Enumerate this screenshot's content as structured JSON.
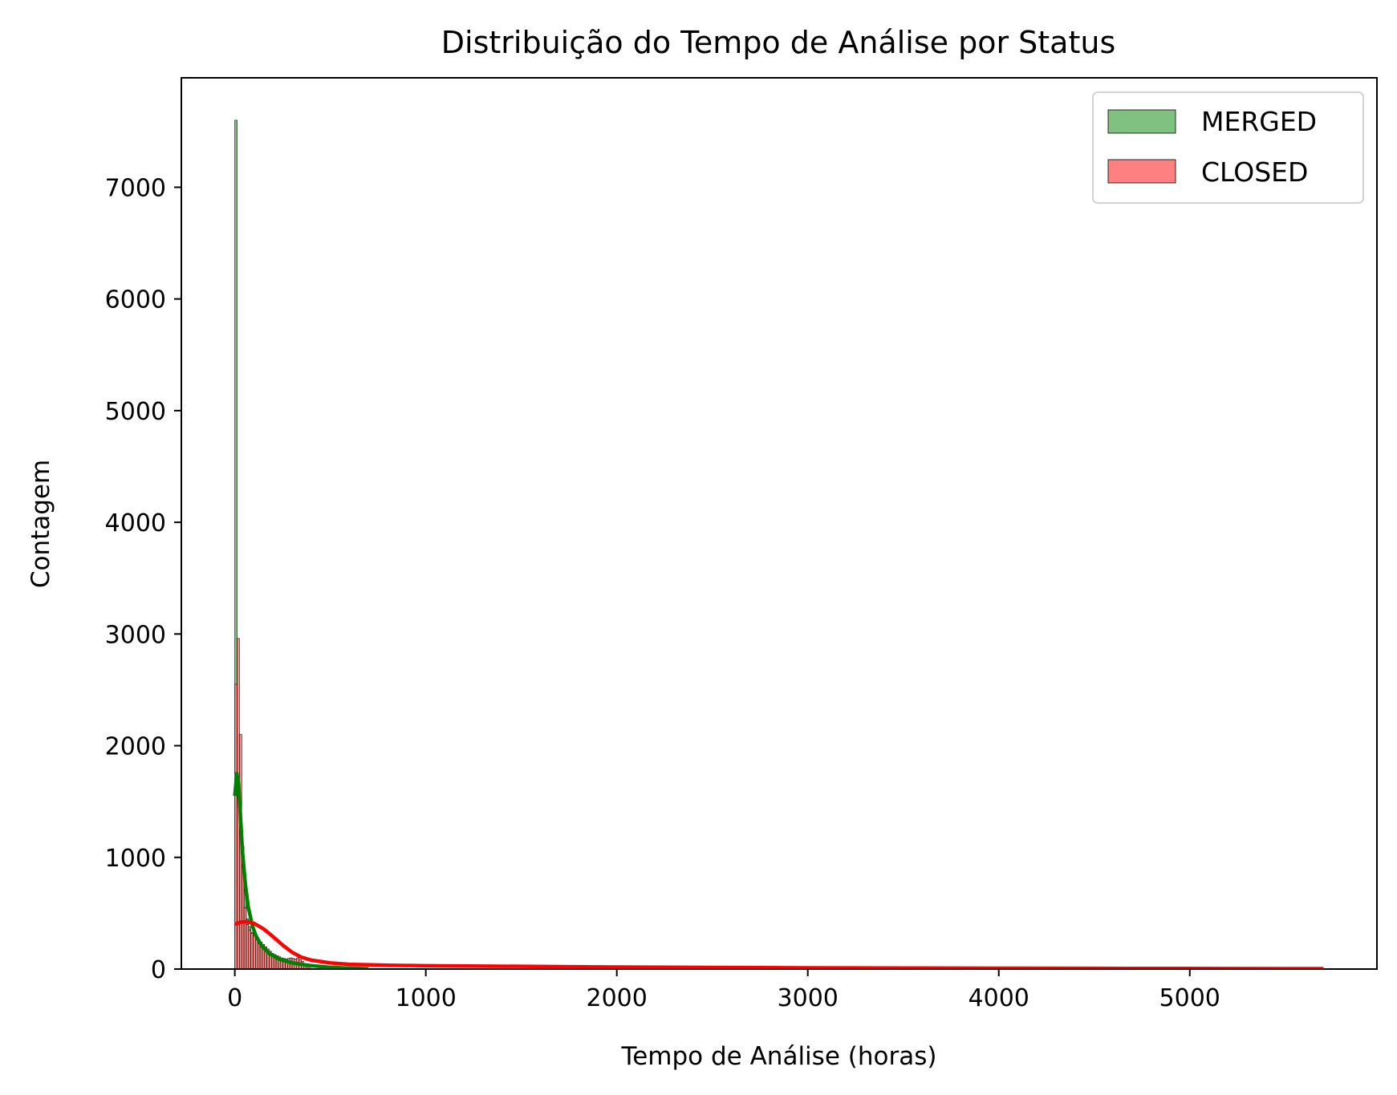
{
  "chart_data": {
    "type": "histogram",
    "title": "Distribuição do Tempo de Análise por Status",
    "xlabel": "Tempo de Análise (horas)",
    "ylabel": "Contagem",
    "xlim": [
      -280,
      5980
    ],
    "ylim": [
      0,
      7980
    ],
    "xticks": [
      0,
      1000,
      2000,
      3000,
      4000,
      5000
    ],
    "yticks": [
      0,
      1000,
      2000,
      3000,
      4000,
      5000,
      6000,
      7000
    ],
    "grid": false,
    "legend_position": "upper right",
    "series": [
      {
        "name": "MERGED",
        "color": "#008000",
        "bar_color": "#80c080",
        "bins": [
          {
            "x0": 0,
            "x1": 12,
            "count": 7600
          },
          {
            "x0": 12,
            "x1": 24,
            "count": 2100
          },
          {
            "x0": 24,
            "x1": 36,
            "count": 1500
          },
          {
            "x0": 36,
            "x1": 48,
            "count": 900
          },
          {
            "x0": 48,
            "x1": 60,
            "count": 700
          },
          {
            "x0": 60,
            "x1": 72,
            "count": 450
          },
          {
            "x0": 72,
            "x1": 84,
            "count": 380
          },
          {
            "x0": 84,
            "x1": 96,
            "count": 330
          },
          {
            "x0": 96,
            "x1": 108,
            "count": 290
          },
          {
            "x0": 108,
            "x1": 120,
            "count": 260
          },
          {
            "x0": 120,
            "x1": 132,
            "count": 230
          },
          {
            "x0": 132,
            "x1": 144,
            "count": 200
          },
          {
            "x0": 144,
            "x1": 156,
            "count": 180
          },
          {
            "x0": 156,
            "x1": 168,
            "count": 160
          },
          {
            "x0": 168,
            "x1": 180,
            "count": 140
          },
          {
            "x0": 180,
            "x1": 192,
            "count": 120
          },
          {
            "x0": 192,
            "x1": 204,
            "count": 110
          },
          {
            "x0": 204,
            "x1": 216,
            "count": 100
          },
          {
            "x0": 216,
            "x1": 228,
            "count": 90
          },
          {
            "x0": 228,
            "x1": 240,
            "count": 80
          },
          {
            "x0": 240,
            "x1": 252,
            "count": 70
          },
          {
            "x0": 252,
            "x1": 264,
            "count": 60
          },
          {
            "x0": 264,
            "x1": 276,
            "count": 55
          },
          {
            "x0": 276,
            "x1": 288,
            "count": 50
          },
          {
            "x0": 288,
            "x1": 300,
            "count": 45
          }
        ],
        "kde": [
          [
            0,
            1550
          ],
          [
            10,
            1750
          ],
          [
            20,
            1650
          ],
          [
            30,
            1350
          ],
          [
            40,
            1050
          ],
          [
            55,
            760
          ],
          [
            70,
            560
          ],
          [
            90,
            400
          ],
          [
            110,
            300
          ],
          [
            140,
            210
          ],
          [
            180,
            140
          ],
          [
            230,
            90
          ],
          [
            300,
            55
          ],
          [
            400,
            30
          ],
          [
            500,
            15
          ],
          [
            600,
            8
          ],
          [
            700,
            3
          ]
        ]
      },
      {
        "name": "CLOSED",
        "color": "#ff0000",
        "bar_color": "#ff8080",
        "bins": [
          {
            "x0": 0,
            "x1": 12,
            "count": 2550
          },
          {
            "x0": 12,
            "x1": 24,
            "count": 2960
          },
          {
            "x0": 24,
            "x1": 36,
            "count": 2100
          },
          {
            "x0": 36,
            "x1": 48,
            "count": 1100
          },
          {
            "x0": 48,
            "x1": 60,
            "count": 550
          },
          {
            "x0": 60,
            "x1": 72,
            "count": 400
          },
          {
            "x0": 72,
            "x1": 84,
            "count": 350
          },
          {
            "x0": 84,
            "x1": 96,
            "count": 320
          },
          {
            "x0": 96,
            "x1": 108,
            "count": 300
          },
          {
            "x0": 108,
            "x1": 120,
            "count": 280
          },
          {
            "x0": 120,
            "x1": 132,
            "count": 260
          },
          {
            "x0": 132,
            "x1": 144,
            "count": 240
          },
          {
            "x0": 144,
            "x1": 156,
            "count": 220
          },
          {
            "x0": 156,
            "x1": 168,
            "count": 200
          },
          {
            "x0": 168,
            "x1": 180,
            "count": 180
          },
          {
            "x0": 180,
            "x1": 192,
            "count": 160
          },
          {
            "x0": 192,
            "x1": 204,
            "count": 140
          },
          {
            "x0": 204,
            "x1": 216,
            "count": 130
          },
          {
            "x0": 216,
            "x1": 228,
            "count": 120
          },
          {
            "x0": 228,
            "x1": 240,
            "count": 110
          },
          {
            "x0": 240,
            "x1": 252,
            "count": 100
          },
          {
            "x0": 252,
            "x1": 264,
            "count": 95
          },
          {
            "x0": 264,
            "x1": 276,
            "count": 90
          },
          {
            "x0": 276,
            "x1": 288,
            "count": 95
          },
          {
            "x0": 288,
            "x1": 300,
            "count": 100
          },
          {
            "x0": 300,
            "x1": 312,
            "count": 95
          },
          {
            "x0": 312,
            "x1": 324,
            "count": 90
          },
          {
            "x0": 324,
            "x1": 336,
            "count": 100
          },
          {
            "x0": 336,
            "x1": 348,
            "count": 85
          },
          {
            "x0": 348,
            "x1": 360,
            "count": 70
          },
          {
            "x0": 360,
            "x1": 372,
            "count": 50
          },
          {
            "x0": 372,
            "x1": 384,
            "count": 40
          },
          {
            "x0": 384,
            "x1": 396,
            "count": 30
          }
        ],
        "kde": [
          [
            0,
            400
          ],
          [
            30,
            420
          ],
          [
            60,
            425
          ],
          [
            100,
            410
          ],
          [
            150,
            360
          ],
          [
            200,
            290
          ],
          [
            250,
            215
          ],
          [
            300,
            150
          ],
          [
            350,
            105
          ],
          [
            400,
            80
          ],
          [
            500,
            55
          ],
          [
            600,
            42
          ],
          [
            800,
            34
          ],
          [
            1000,
            30
          ],
          [
            1500,
            24
          ],
          [
            2000,
            18
          ],
          [
            2500,
            14
          ],
          [
            3000,
            11
          ],
          [
            3500,
            9
          ],
          [
            4000,
            7
          ],
          [
            4500,
            6
          ],
          [
            5000,
            5
          ],
          [
            5500,
            4
          ],
          [
            5700,
            4
          ]
        ]
      }
    ]
  }
}
